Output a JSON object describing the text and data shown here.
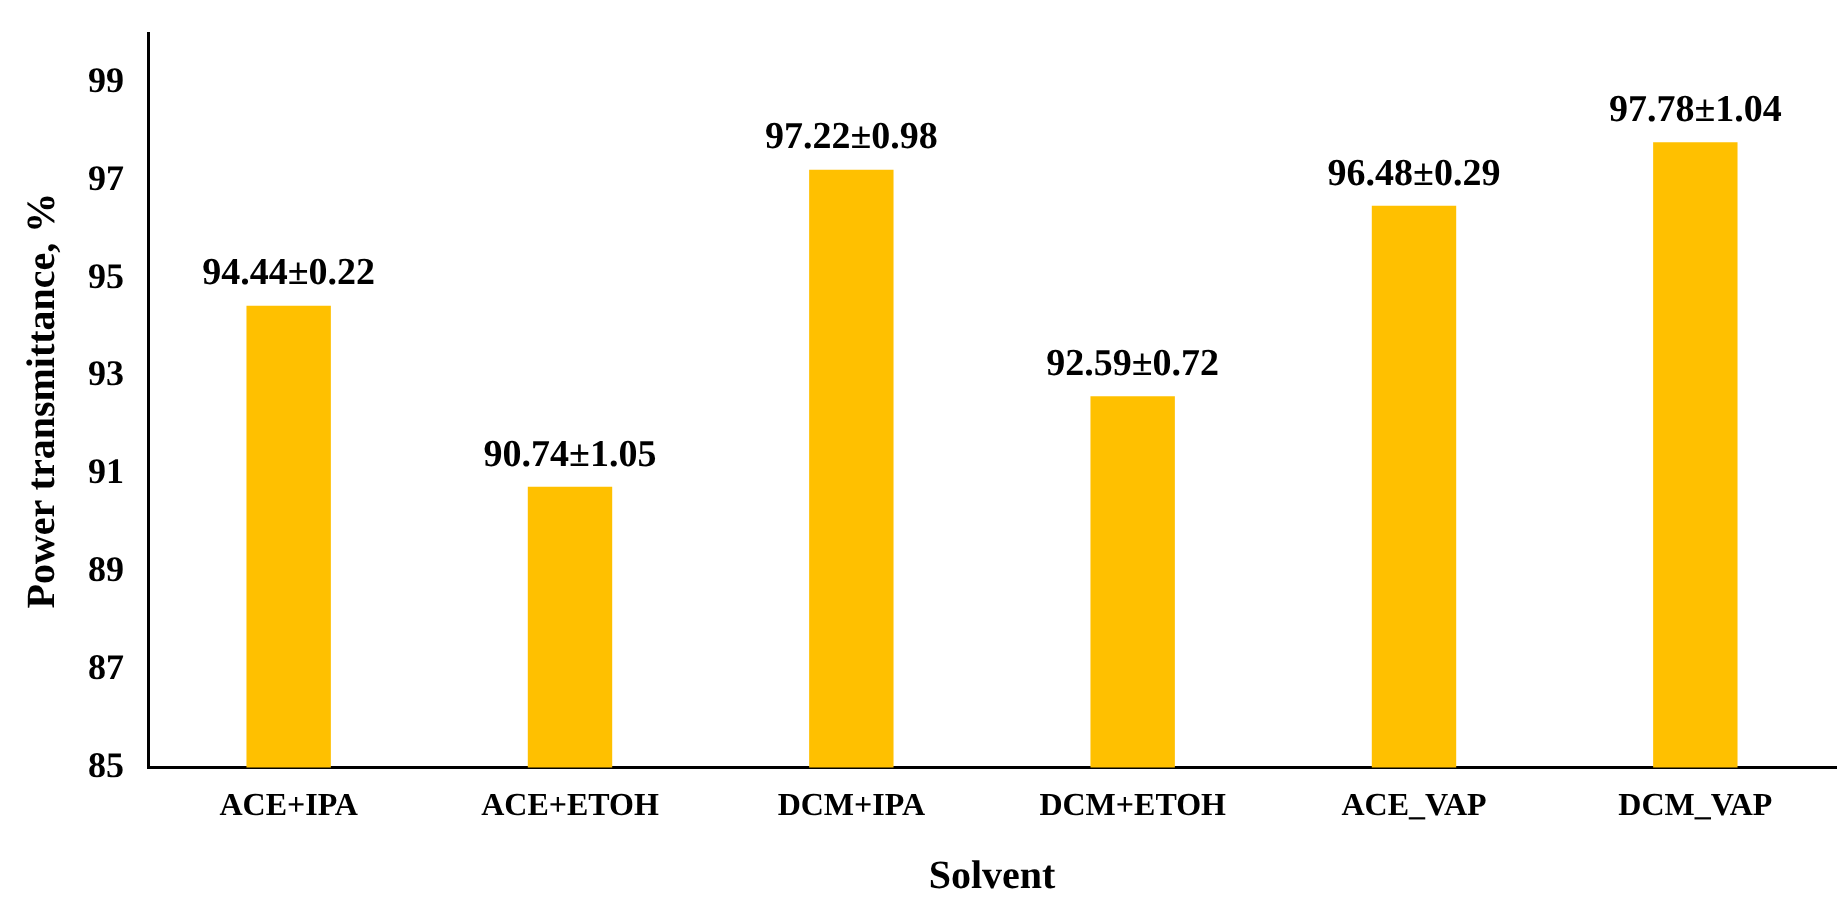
{
  "chart_data": {
    "type": "bar",
    "xlabel": "Solvent",
    "ylabel": "Power transmittance, %",
    "categories": [
      "ACE+IPA",
      "ACE+ETOH",
      "DCM+IPA",
      "DCM+ETOH",
      "ACE_VAP",
      "DCM_VAP"
    ],
    "values": [
      94.44,
      90.74,
      97.22,
      92.59,
      96.48,
      97.78
    ],
    "value_labels": [
      "94.44±0.22",
      "90.74±1.05",
      "97.22±0.98",
      "92.59±0.72",
      "96.48±0.29",
      "97.78±1.04"
    ],
    "color": "#ffc000",
    "ylim": [
      85,
      100
    ],
    "yticks": [
      85,
      87,
      89,
      91,
      93,
      95,
      97,
      99
    ],
    "grid": false,
    "legend": false
  }
}
